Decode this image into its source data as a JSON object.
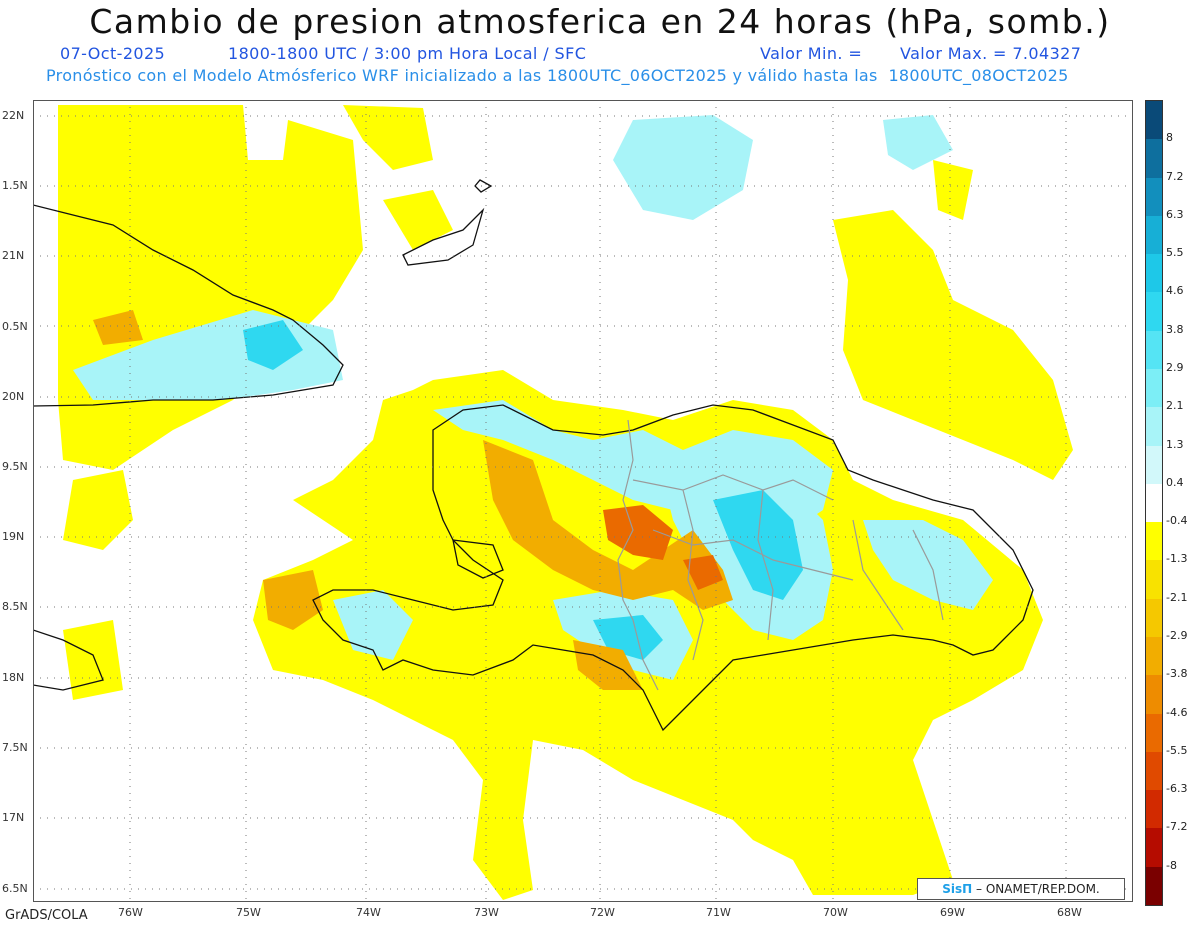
{
  "title": "Cambio de presion atmosferica en 24 horas (hPa, somb.)",
  "subtitle": {
    "date": "07-Oct-2025",
    "time": "1800-1800 UTC / 3:00 pm Hora Local / SFC",
    "min": "Valor Min. =",
    "max": "Valor Max. = 7.04327"
  },
  "model_line": "Pronóstico con el Modelo Atmósferico WRF inicializado a las 1800UTC_06OCT2025 y válido hasta las  1800UTC_08OCT2025",
  "lat_labels": [
    "22N",
    "1.5N",
    "21N",
    "0.5N",
    "20N",
    "9.5N",
    "19N",
    "8.5N",
    "18N",
    "7.5N",
    "17N",
    "6.5N"
  ],
  "lon_labels": [
    "76W",
    "75W",
    "74W",
    "73W",
    "72W",
    "71W",
    "70W",
    "69W",
    "68W"
  ],
  "colorbar": {
    "labels": [
      "8",
      "7.2",
      "6.3",
      "5.5",
      "4.6",
      "3.8",
      "2.9",
      "2.1",
      "1.3",
      "0.4",
      "-0.4",
      "-1.3",
      "-2.1",
      "-2.9",
      "-3.8",
      "-4.6",
      "-5.5",
      "-6.3",
      "-7.2",
      "-8"
    ],
    "colors": [
      "#0a4a78",
      "#0e6f9e",
      "#128fbd",
      "#17afd6",
      "#1ec8e8",
      "#2fd8f0",
      "#55e4f4",
      "#7ceef6",
      "#a8f4f8",
      "#d2f8fa",
      "#ffffff",
      "#ffff00",
      "#f8e200",
      "#f5c800",
      "#f2ad00",
      "#ee8c00",
      "#ea6a00",
      "#e04a00",
      "#d22a00",
      "#b50c00",
      "#7a0000"
    ]
  },
  "footer": "GrADS/COLA",
  "credit": {
    "brand": "SisΠ",
    "text": "– ONAMET/REP.DOM."
  }
}
